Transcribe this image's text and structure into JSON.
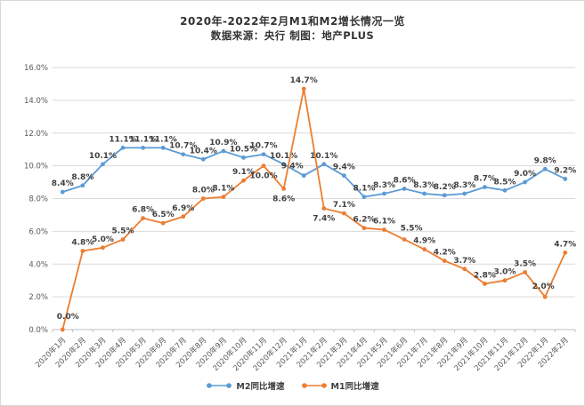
{
  "chart_data": {
    "type": "line",
    "title": "2020年-2022年2月M1和M2增长情况一览",
    "subtitle": "数据来源：央行  制图：地产PLUS",
    "categories": [
      "2020年1月",
      "2020年2月",
      "2020年3月",
      "2020年4月",
      "2020年5月",
      "2020年6月",
      "2020年7月",
      "2020年8月",
      "2020年9月",
      "2020年10月",
      "2020年11月",
      "2020年12月",
      "2021年1月",
      "2021年2月",
      "2021年3月",
      "2021年4月",
      "2021年5月",
      "2021年6月",
      "2021年7月",
      "2021年8月",
      "2021年9月",
      "2021年10月",
      "2021年11月",
      "2021年12月",
      "2022年1月",
      "2022年2月"
    ],
    "series": [
      {
        "name": "M2同比增速",
        "color": "#5B9BD5",
        "values": [
          8.4,
          8.8,
          10.1,
          11.1,
          11.1,
          11.1,
          10.7,
          10.4,
          10.9,
          10.5,
          10.7,
          10.1,
          9.4,
          10.1,
          9.4,
          8.1,
          8.3,
          8.6,
          8.3,
          8.2,
          8.3,
          8.7,
          8.5,
          9.0,
          9.8,
          9.2
        ],
        "label_below": [],
        "label_offsets": {
          "12": [
            -13,
            -1
          ]
        }
      },
      {
        "name": "M1同比增速",
        "color": "#ED7D31",
        "values": [
          0.0,
          4.8,
          5.0,
          5.5,
          6.8,
          6.5,
          6.9,
          8.0,
          8.1,
          9.1,
          10.0,
          8.6,
          14.7,
          7.4,
          7.1,
          6.2,
          6.1,
          5.5,
          4.9,
          4.2,
          3.7,
          2.8,
          3.0,
          3.5,
          2.0,
          4.7
        ],
        "label_below": [
          10,
          11,
          13
        ],
        "label_offsets": {
          "0": [
            6,
            -5
          ],
          "17": [
            8,
            -3
          ],
          "24": [
            -2,
            -2
          ]
        }
      }
    ],
    "ylim": [
      0,
      16
    ],
    "y_tick_step": 2,
    "y_tick_labels": [
      "0.0%",
      "2.0%",
      "4.0%",
      "6.0%",
      "8.0%",
      "10.0%",
      "12.0%",
      "14.0%",
      "16.0%"
    ],
    "grid": true,
    "legend_position": "bottom",
    "colors": {
      "gridline": "#D9D9D9",
      "axis": "#BFBFBF",
      "data_label": "#404040",
      "axis_label": "#595959",
      "title": "#333333"
    }
  }
}
